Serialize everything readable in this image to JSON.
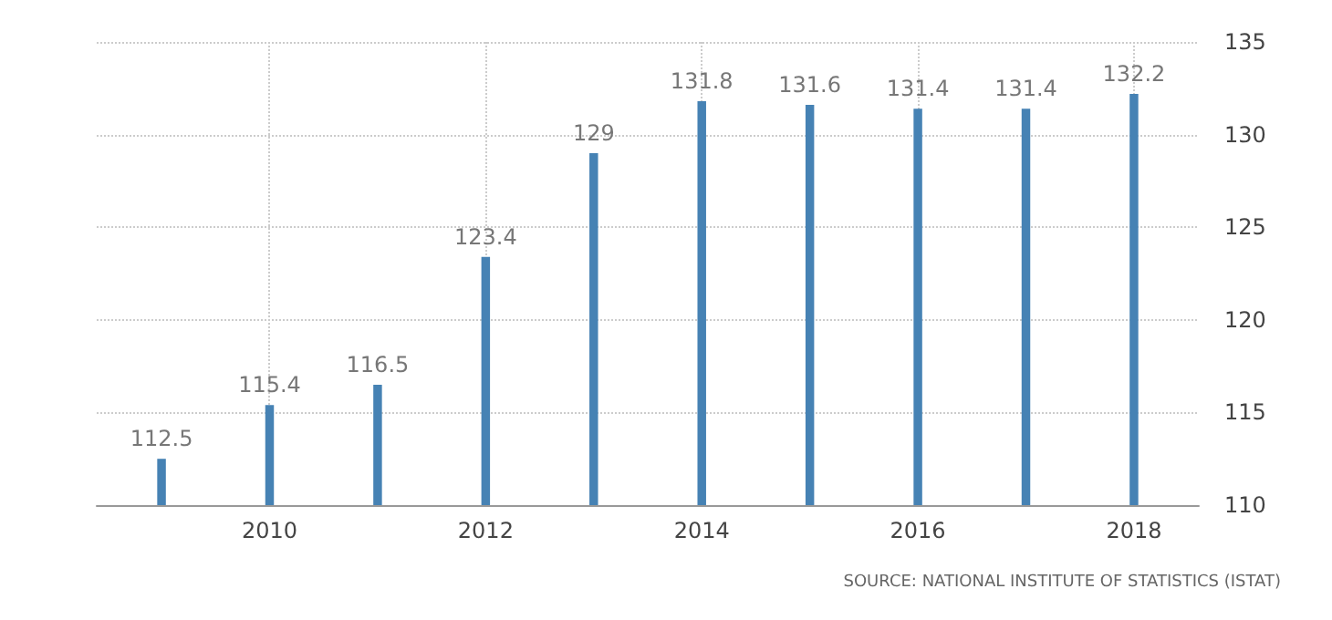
{
  "chart_data": {
    "type": "bar",
    "x": [
      2009,
      2010,
      2011,
      2012,
      2013,
      2014,
      2015,
      2016,
      2017,
      2018
    ],
    "values": [
      112.5,
      115.4,
      116.5,
      123.4,
      129,
      131.8,
      131.6,
      131.4,
      131.4,
      132.2
    ],
    "color": "#4682b4",
    "data_labels": true,
    "xlim": [
      2008.4,
      2018.6
    ],
    "xticks": [
      2010,
      2012,
      2014,
      2016,
      2018
    ],
    "ylim": [
      110,
      135
    ],
    "yticks": [
      110,
      115,
      120,
      125,
      130,
      135
    ],
    "grid": true,
    "annotations": [
      "SOURCE: NATIONAL INSTITUTE OF STATISTICS (ISTAT)"
    ]
  }
}
